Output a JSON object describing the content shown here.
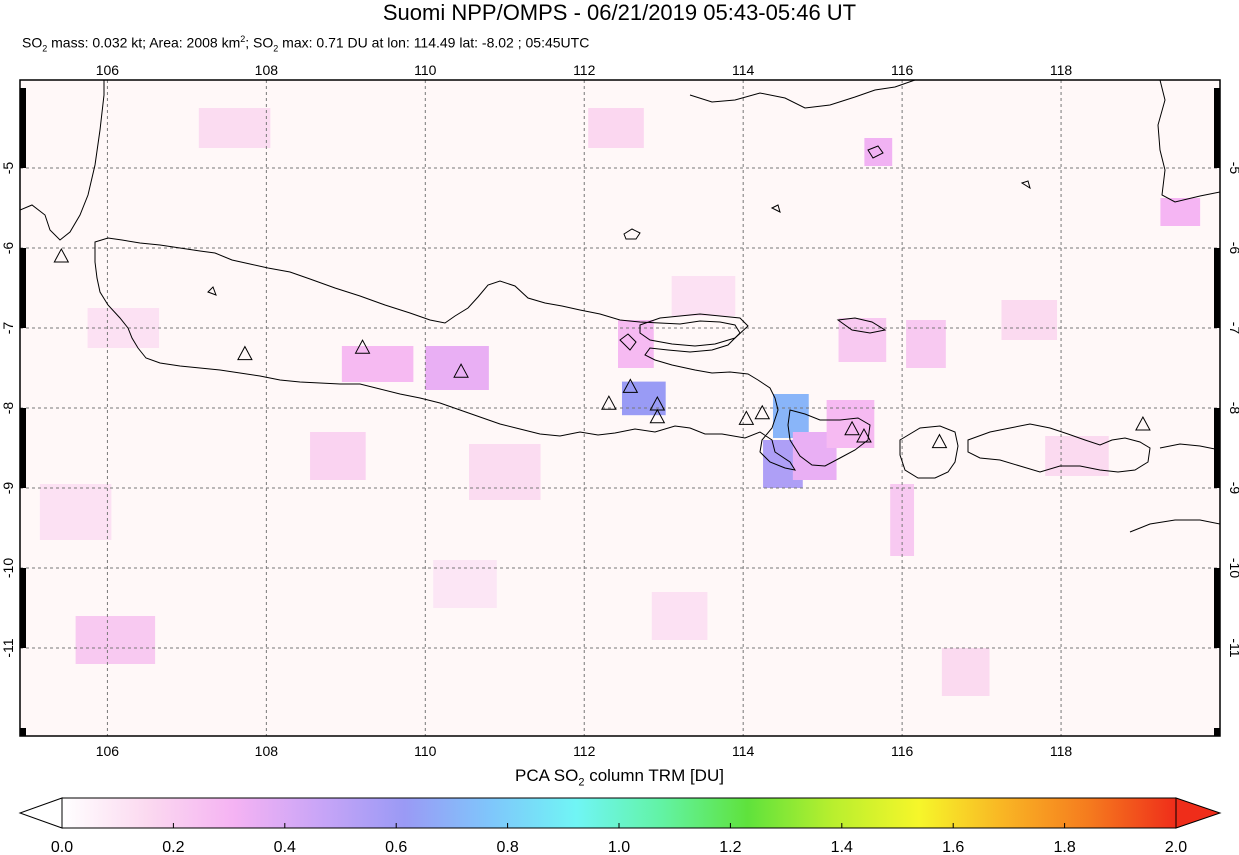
{
  "title": "Suomi NPP/OMPS - 06/21/2019 05:43-05:46 UT",
  "subtitle": {
    "p1": "SO",
    "sub1": "2",
    "p2": " mass: 0.032 kt; Area: 2008 km",
    "sup1": "2",
    "p3": "; SO",
    "sub2": "2",
    "p4": " max: 0.71 DU at lon: 114.49 lat: -8.02 ; 05:45UTC"
  },
  "map": {
    "lon_range": [
      104.9,
      120.0
    ],
    "lat_range": [
      -12.1,
      -3.9
    ],
    "lon_ticks": [
      "106",
      "108",
      "110",
      "112",
      "114",
      "116",
      "118"
    ],
    "lat_ticks": [
      "-5",
      "-6",
      "-7",
      "-8",
      "-9",
      "-10",
      "-11"
    ],
    "grid": "dashed",
    "volcano_marker": "triangle-icon",
    "volcanoes": [
      {
        "lon": 105.42,
        "lat": -6.1
      },
      {
        "lon": 107.73,
        "lat": -7.32
      },
      {
        "lon": 109.21,
        "lat": -7.24
      },
      {
        "lon": 110.45,
        "lat": -7.54
      },
      {
        "lon": 112.31,
        "lat": -7.94
      },
      {
        "lon": 112.58,
        "lat": -7.73
      },
      {
        "lon": 112.92,
        "lat": -7.95
      },
      {
        "lon": 112.92,
        "lat": -8.11
      },
      {
        "lon": 114.04,
        "lat": -8.13
      },
      {
        "lon": 114.24,
        "lat": -8.06
      },
      {
        "lon": 115.37,
        "lat": -8.26
      },
      {
        "lon": 115.52,
        "lat": -8.35
      },
      {
        "lon": 116.47,
        "lat": -8.42
      },
      {
        "lon": 119.03,
        "lat": -8.2
      }
    ],
    "so2_pixels": [
      {
        "lon": 112.75,
        "lat": -7.88,
        "w": 0.55,
        "h": 0.42,
        "v": 0.62
      },
      {
        "lon": 114.6,
        "lat": -8.1,
        "w": 0.45,
        "h": 0.55,
        "v": 0.71
      },
      {
        "lon": 114.5,
        "lat": -8.7,
        "w": 0.5,
        "h": 0.6,
        "v": 0.55
      },
      {
        "lon": 114.9,
        "lat": -8.6,
        "w": 0.55,
        "h": 0.6,
        "v": 0.35
      },
      {
        "lon": 115.35,
        "lat": -8.2,
        "w": 0.6,
        "h": 0.6,
        "v": 0.28
      },
      {
        "lon": 110.4,
        "lat": -7.5,
        "w": 0.8,
        "h": 0.55,
        "v": 0.35
      },
      {
        "lon": 109.4,
        "lat": -7.45,
        "w": 0.9,
        "h": 0.45,
        "v": 0.28
      },
      {
        "lon": 112.65,
        "lat": -7.2,
        "w": 0.45,
        "h": 0.6,
        "v": 0.28
      },
      {
        "lon": 115.7,
        "lat": -4.8,
        "w": 0.35,
        "h": 0.35,
        "v": 0.32
      },
      {
        "lon": 115.5,
        "lat": -7.15,
        "w": 0.6,
        "h": 0.55,
        "v": 0.22
      },
      {
        "lon": 116.3,
        "lat": -7.2,
        "w": 0.5,
        "h": 0.6,
        "v": 0.22
      },
      {
        "lon": 119.5,
        "lat": -5.55,
        "w": 0.5,
        "h": 0.35,
        "v": 0.3
      },
      {
        "lon": 106.1,
        "lat": -10.9,
        "w": 1.0,
        "h": 0.6,
        "v": 0.22
      },
      {
        "lon": 108.9,
        "lat": -8.6,
        "w": 0.7,
        "h": 0.6,
        "v": 0.18
      },
      {
        "lon": 111.0,
        "lat": -8.8,
        "w": 0.9,
        "h": 0.7,
        "v": 0.14
      },
      {
        "lon": 107.6,
        "lat": -4.5,
        "w": 0.9,
        "h": 0.5,
        "v": 0.14
      },
      {
        "lon": 112.4,
        "lat": -4.5,
        "w": 0.7,
        "h": 0.5,
        "v": 0.16
      },
      {
        "lon": 116.0,
        "lat": -9.4,
        "w": 0.3,
        "h": 0.9,
        "v": 0.22
      },
      {
        "lon": 117.6,
        "lat": -6.9,
        "w": 0.7,
        "h": 0.5,
        "v": 0.15
      },
      {
        "lon": 113.5,
        "lat": -6.6,
        "w": 0.8,
        "h": 0.5,
        "v": 0.12
      },
      {
        "lon": 105.6,
        "lat": -9.3,
        "w": 0.9,
        "h": 0.7,
        "v": 0.12
      },
      {
        "lon": 110.5,
        "lat": -10.2,
        "w": 0.8,
        "h": 0.6,
        "v": 0.1
      },
      {
        "lon": 113.2,
        "lat": -10.6,
        "w": 0.7,
        "h": 0.6,
        "v": 0.12
      },
      {
        "lon": 116.8,
        "lat": -11.3,
        "w": 0.6,
        "h": 0.6,
        "v": 0.15
      },
      {
        "lon": 118.2,
        "lat": -8.6,
        "w": 0.8,
        "h": 0.5,
        "v": 0.15
      },
      {
        "lon": 106.2,
        "lat": -7.0,
        "w": 0.9,
        "h": 0.5,
        "v": 0.12
      }
    ]
  },
  "colorbar": {
    "title_p1": "PCA SO",
    "title_sub": "2",
    "title_p2": " column TRM [DU]",
    "ticks": [
      "0.0",
      "0.2",
      "0.4",
      "0.6",
      "0.8",
      "1.0",
      "1.2",
      "1.4",
      "1.6",
      "1.8",
      "2.0"
    ],
    "range": [
      0.0,
      2.0
    ],
    "stops": [
      "#ffffff",
      "#fbd9f0",
      "#f5b3f3",
      "#c9a5f7",
      "#9a9af5",
      "#7fc6fb",
      "#70f5f5",
      "#62f3a4",
      "#5fe23c",
      "#b9ef2e",
      "#f6f62a",
      "#f9b424",
      "#f57a1e",
      "#ef2d1a"
    ]
  }
}
